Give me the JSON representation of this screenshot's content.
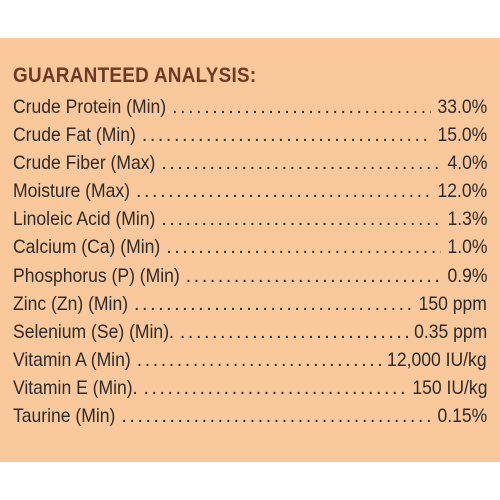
{
  "label_title": "GUARANTEED ANALYSIS:",
  "colors": {
    "panel_background": "#f9c99b",
    "heading_text": "#6b3b26",
    "body_text": "#2b2b2b"
  },
  "rows": [
    {
      "label": "Crude Protein (Min)",
      "value": "33.0%"
    },
    {
      "label": "Crude Fat (Min)",
      "value": "15.0%"
    },
    {
      "label": "Crude Fiber (Max)",
      "value": "4.0%"
    },
    {
      "label": "Moisture (Max)",
      "value": "12.0%"
    },
    {
      "label": "Linoleic Acid (Min)",
      "value": "1.3%"
    },
    {
      "label": "Calcium (Ca) (Min)",
      "value": "1.0%"
    },
    {
      "label": "Phosphorus (P) (Min)",
      "value": "0.9%"
    },
    {
      "label": "Zinc (Zn) (Min)",
      "value": "150 ppm"
    },
    {
      "label": "Selenium (Se) (Min).",
      "value": "0.35 ppm"
    },
    {
      "label": "Vitamin A (Min)",
      "value": "12,000 IU/kg"
    },
    {
      "label": "Vitamin E (Min).",
      "value": "150 IU/kg"
    },
    {
      "label": "Taurine (Min)",
      "value": "0.15%"
    }
  ]
}
